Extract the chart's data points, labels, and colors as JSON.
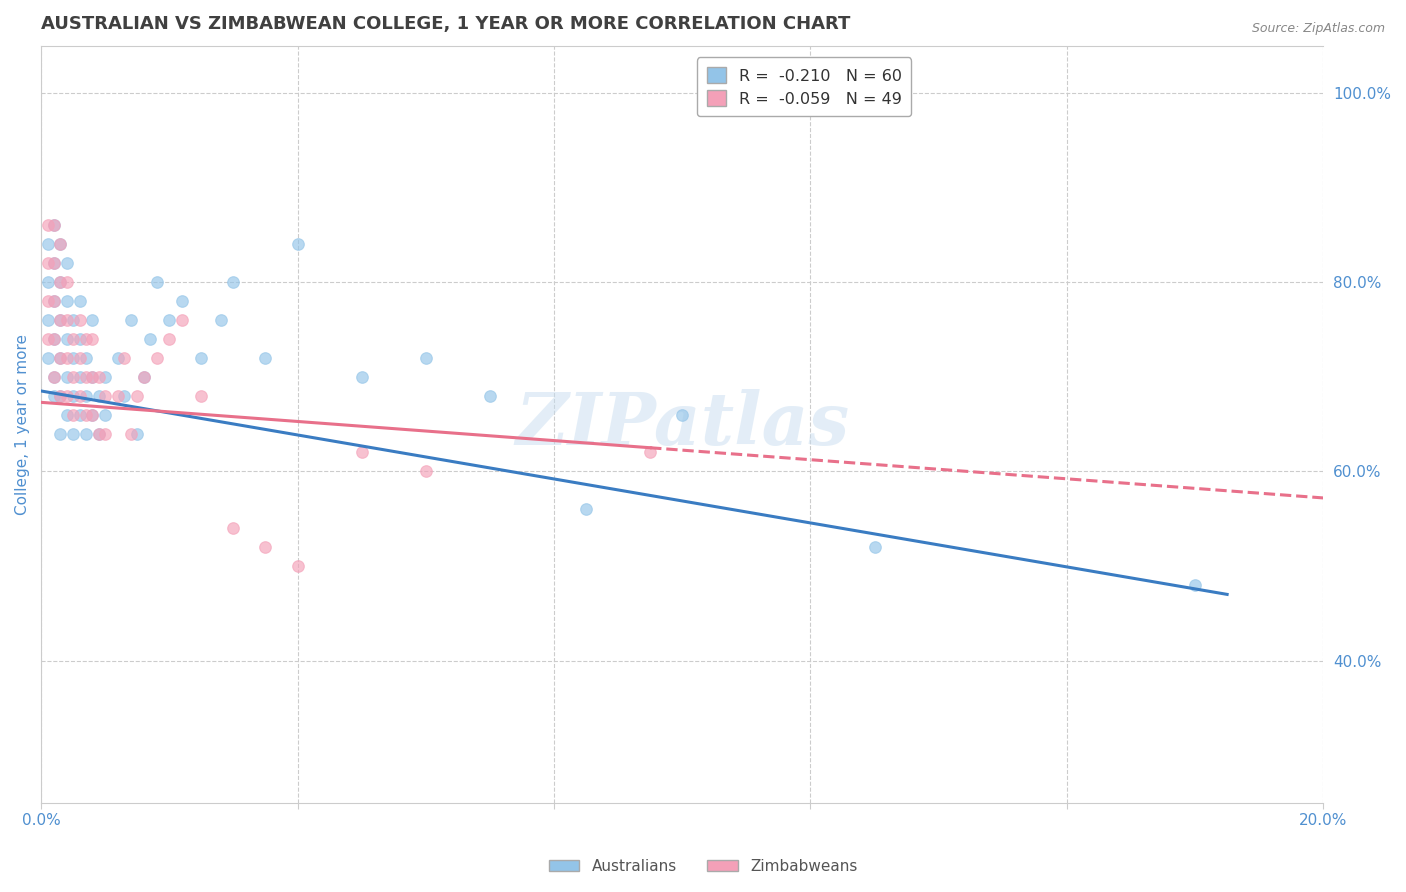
{
  "title": "AUSTRALIAN VS ZIMBABWEAN COLLEGE, 1 YEAR OR MORE CORRELATION CHART",
  "source_text": "Source: ZipAtlas.com",
  "ylabel": "College, 1 year or more",
  "xlim": [
    0.0,
    0.2
  ],
  "ylim": [
    0.25,
    1.05
  ],
  "xtick_positions": [
    0.0,
    0.04,
    0.08,
    0.12,
    0.16,
    0.2
  ],
  "xticklabels": [
    "0.0%",
    "",
    "",
    "",
    "",
    "20.0%"
  ],
  "yticks_right": [
    0.4,
    0.6,
    0.8,
    1.0
  ],
  "ytick_right_labels": [
    "40.0%",
    "60.0%",
    "80.0%",
    "100.0%"
  ],
  "watermark": "ZIPatlas",
  "legend_line1": "R =  -0.210   N = 60",
  "legend_line2": "R =  -0.059   N = 49",
  "aus_color": "#93c4e8",
  "zim_color": "#f4a0b8",
  "aus_line_color": "#3a7cc2",
  "zim_line_color": "#e8708a",
  "dot_size": 70,
  "dot_alpha": 0.65,
  "background_color": "#ffffff",
  "grid_color": "#cccccc",
  "title_color": "#404040",
  "tick_color": "#5090d0",
  "australians_x": [
    0.001,
    0.001,
    0.001,
    0.001,
    0.002,
    0.002,
    0.002,
    0.002,
    0.002,
    0.002,
    0.003,
    0.003,
    0.003,
    0.003,
    0.003,
    0.003,
    0.004,
    0.004,
    0.004,
    0.004,
    0.004,
    0.005,
    0.005,
    0.005,
    0.005,
    0.006,
    0.006,
    0.006,
    0.006,
    0.007,
    0.007,
    0.007,
    0.008,
    0.008,
    0.008,
    0.009,
    0.009,
    0.01,
    0.01,
    0.012,
    0.013,
    0.014,
    0.015,
    0.016,
    0.017,
    0.018,
    0.02,
    0.022,
    0.025,
    0.028,
    0.03,
    0.035,
    0.04,
    0.05,
    0.06,
    0.07,
    0.085,
    0.1,
    0.13,
    0.18
  ],
  "australians_y": [
    0.72,
    0.76,
    0.8,
    0.84,
    0.68,
    0.7,
    0.74,
    0.78,
    0.82,
    0.86,
    0.64,
    0.68,
    0.72,
    0.76,
    0.8,
    0.84,
    0.66,
    0.7,
    0.74,
    0.78,
    0.82,
    0.64,
    0.68,
    0.72,
    0.76,
    0.66,
    0.7,
    0.74,
    0.78,
    0.64,
    0.68,
    0.72,
    0.66,
    0.7,
    0.76,
    0.64,
    0.68,
    0.66,
    0.7,
    0.72,
    0.68,
    0.76,
    0.64,
    0.7,
    0.74,
    0.8,
    0.76,
    0.78,
    0.72,
    0.76,
    0.8,
    0.72,
    0.84,
    0.7,
    0.72,
    0.68,
    0.56,
    0.66,
    0.52,
    0.48
  ],
  "zimbabweans_x": [
    0.001,
    0.001,
    0.001,
    0.001,
    0.002,
    0.002,
    0.002,
    0.002,
    0.002,
    0.003,
    0.003,
    0.003,
    0.003,
    0.003,
    0.004,
    0.004,
    0.004,
    0.004,
    0.005,
    0.005,
    0.005,
    0.006,
    0.006,
    0.006,
    0.007,
    0.007,
    0.007,
    0.008,
    0.008,
    0.008,
    0.009,
    0.009,
    0.01,
    0.01,
    0.012,
    0.013,
    0.014,
    0.015,
    0.016,
    0.018,
    0.02,
    0.022,
    0.025,
    0.03,
    0.035,
    0.04,
    0.05,
    0.06,
    0.095
  ],
  "zimbabweans_y": [
    0.74,
    0.78,
    0.82,
    0.86,
    0.7,
    0.74,
    0.78,
    0.82,
    0.86,
    0.68,
    0.72,
    0.76,
    0.8,
    0.84,
    0.68,
    0.72,
    0.76,
    0.8,
    0.66,
    0.7,
    0.74,
    0.68,
    0.72,
    0.76,
    0.66,
    0.7,
    0.74,
    0.66,
    0.7,
    0.74,
    0.64,
    0.7,
    0.64,
    0.68,
    0.68,
    0.72,
    0.64,
    0.68,
    0.7,
    0.72,
    0.74,
    0.76,
    0.68,
    0.54,
    0.52,
    0.5,
    0.62,
    0.6,
    0.62
  ]
}
